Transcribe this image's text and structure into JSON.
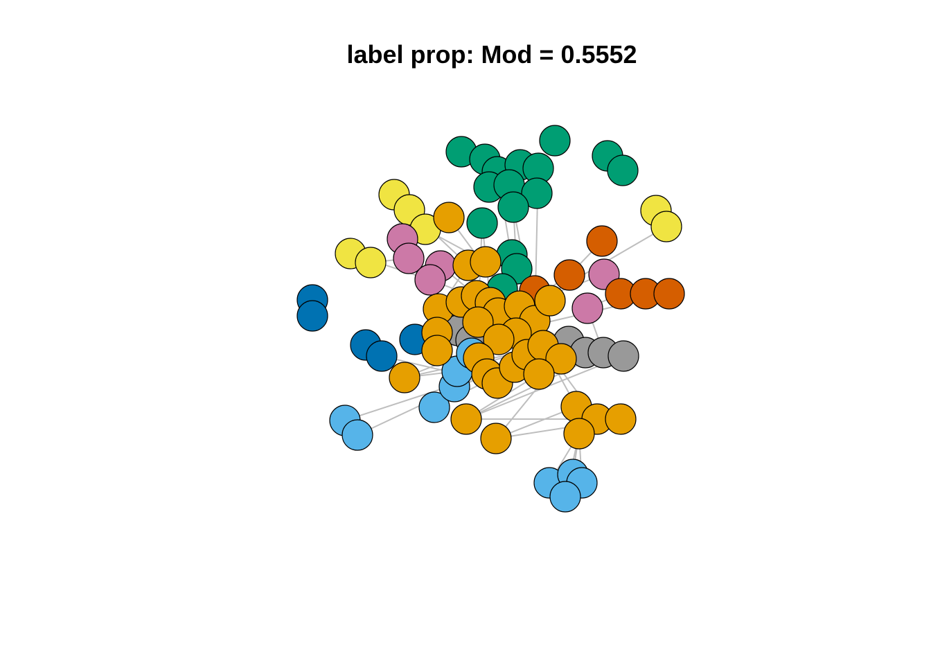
{
  "title": "label prop: Mod = 0.5552",
  "colors": {
    "green": "#009E73",
    "yellow": "#F0E442",
    "orange": "#E69F00",
    "pink": "#CC79A7",
    "vermillion": "#D55E00",
    "blue": "#0072B2",
    "sky": "#56B4E9",
    "gray": "#999999",
    "edge": "#BEBEBE",
    "node_border": "#000000"
  }
}
